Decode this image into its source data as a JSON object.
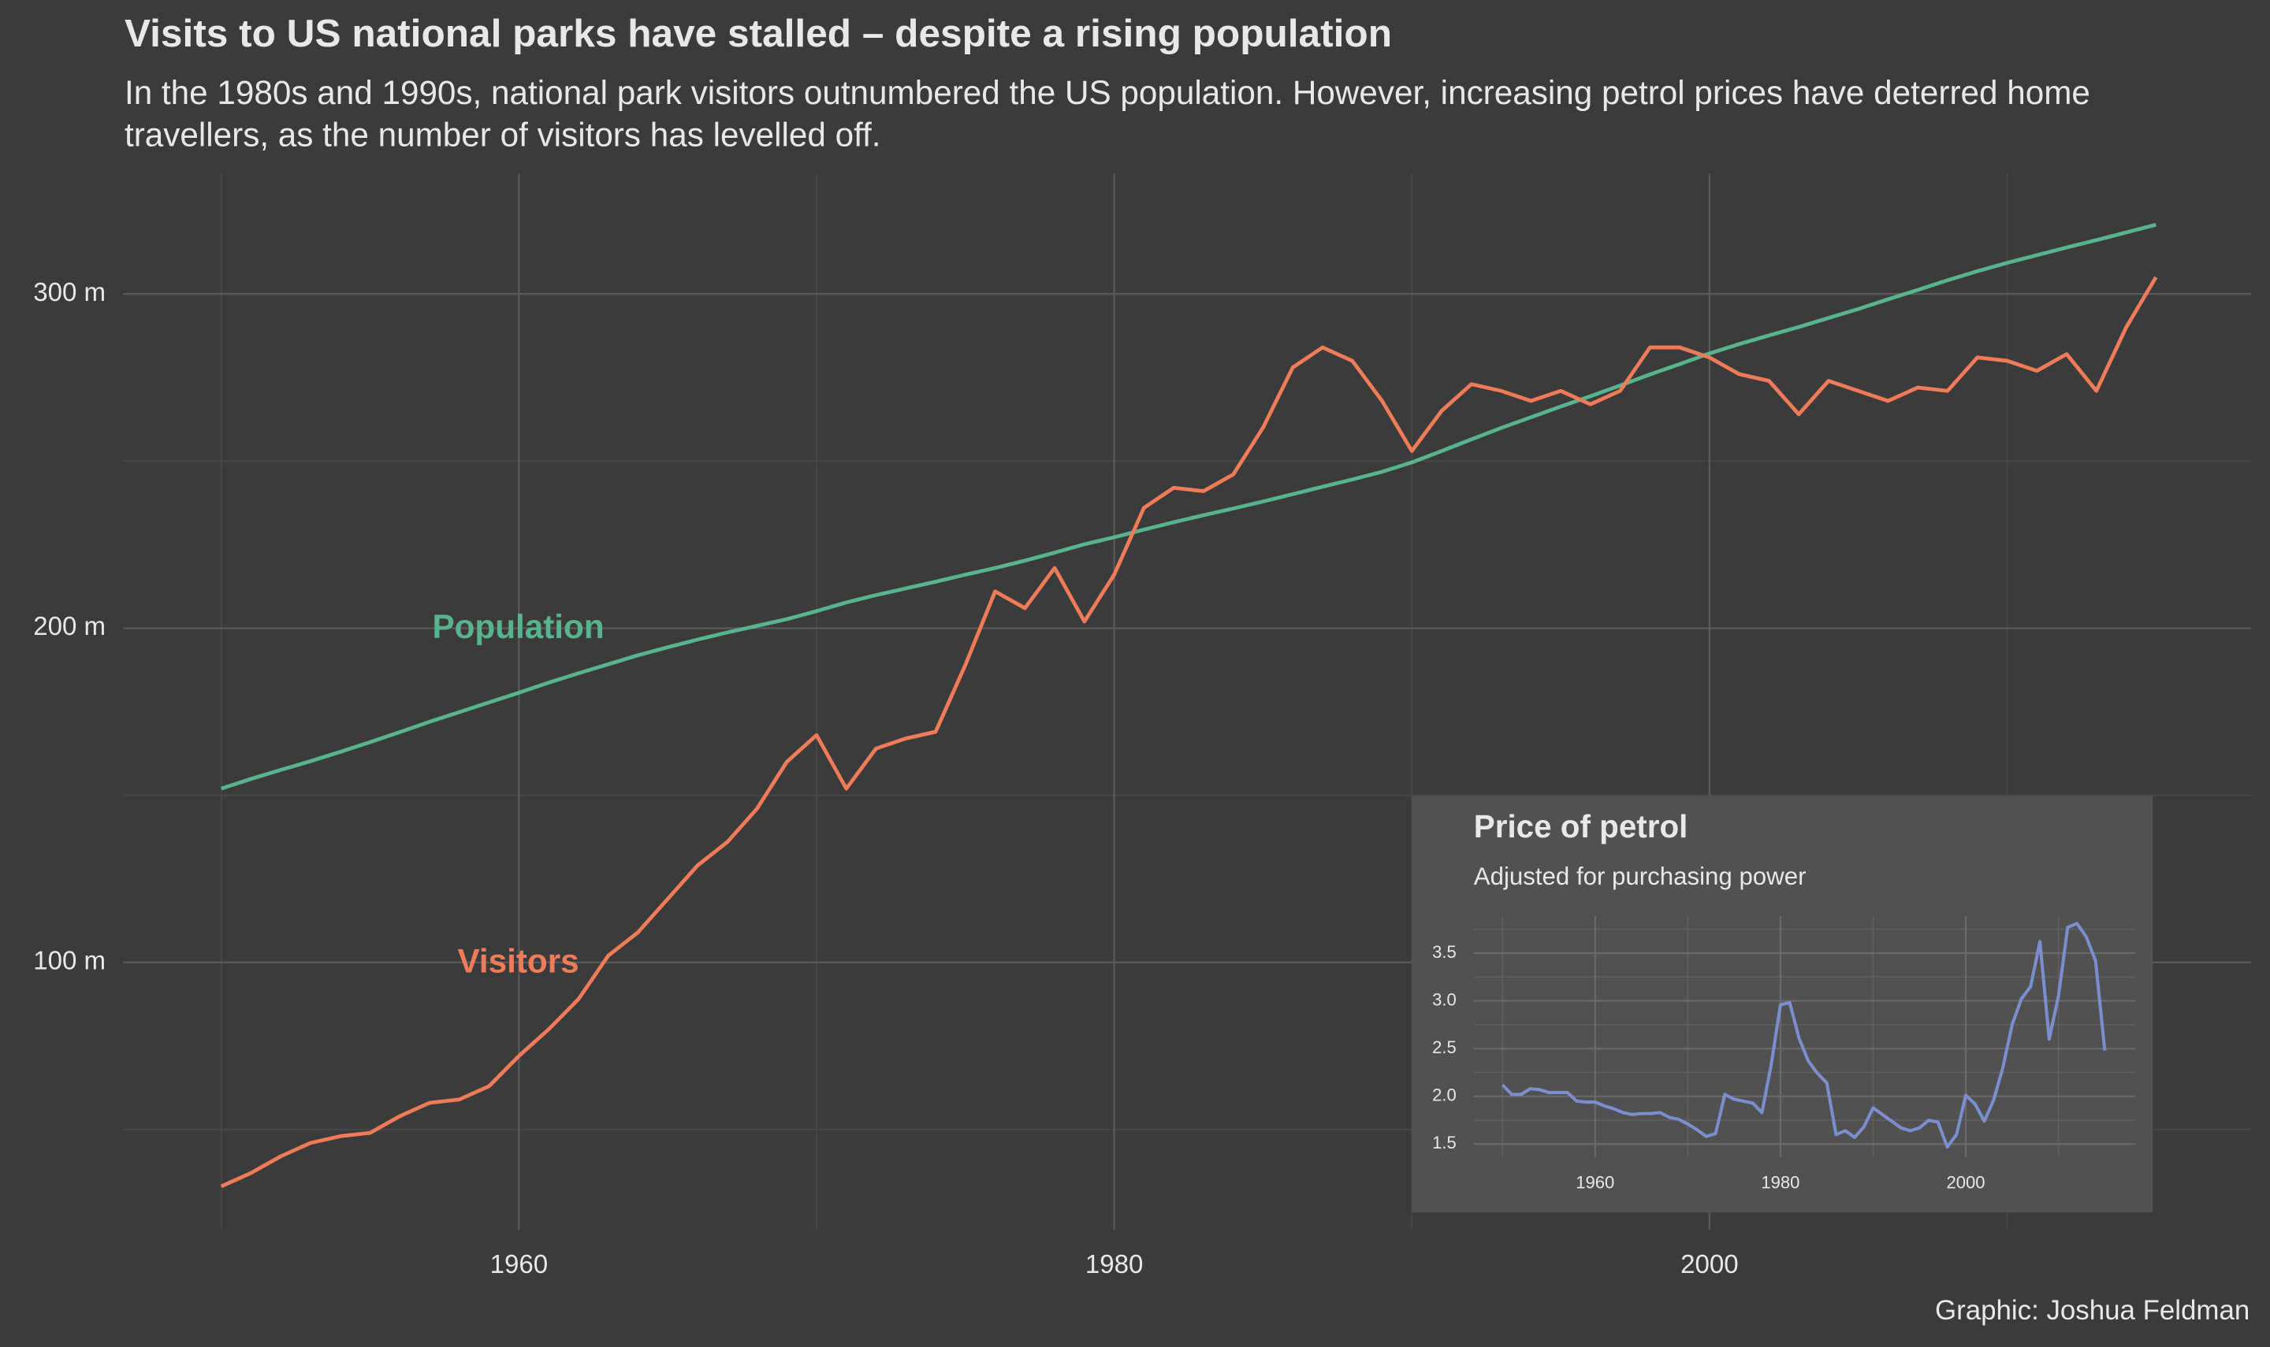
{
  "chart_data": [
    {
      "type": "line",
      "title": "Visits to US national parks have stalled – despite a rising population",
      "subtitle": "In the 1980s and 1990s, national park visitors outnumbered the US population. However, increasing petrol prices have deterred home travellers, as the number of visitors has levelled off.",
      "x": [
        1950,
        1951,
        1952,
        1953,
        1954,
        1955,
        1956,
        1957,
        1958,
        1959,
        1960,
        1961,
        1962,
        1963,
        1964,
        1965,
        1966,
        1967,
        1968,
        1969,
        1970,
        1971,
        1972,
        1973,
        1974,
        1975,
        1976,
        1977,
        1978,
        1979,
        1980,
        1981,
        1982,
        1983,
        1984,
        1985,
        1986,
        1987,
        1988,
        1989,
        1990,
        1991,
        1992,
        1993,
        1994,
        1995,
        1996,
        1997,
        1998,
        1999,
        2000,
        2001,
        2002,
        2003,
        2004,
        2005,
        2006,
        2007,
        2008,
        2009,
        2010,
        2011,
        2012,
        2013,
        2014,
        2015
      ],
      "series": [
        {
          "name": "Population",
          "color": "#58b48f",
          "values": [
            152,
            154.9,
            157.6,
            160.2,
            163,
            165.9,
            168.9,
            172,
            174.9,
            177.8,
            180.7,
            183.7,
            186.5,
            189.2,
            191.9,
            194.3,
            196.6,
            198.7,
            200.7,
            202.7,
            205.1,
            207.7,
            209.9,
            211.9,
            213.9,
            216,
            218,
            220.2,
            222.6,
            225.1,
            227.2,
            229.5,
            231.7,
            233.8,
            235.8,
            237.9,
            240.1,
            242.3,
            244.5,
            246.8,
            249.6,
            253,
            256.5,
            259.9,
            263.1,
            266.3,
            269.4,
            272.6,
            275.9,
            279,
            282.2,
            285,
            287.6,
            290.1,
            292.8,
            295.5,
            298.4,
            301.2,
            304.1,
            306.8,
            309.3,
            311.6,
            313.9,
            316.1,
            318.4,
            320.7
          ]
        },
        {
          "name": "Visitors",
          "color": "#f07b58",
          "values": [
            33,
            37,
            42,
            46,
            48,
            49,
            54,
            58,
            59,
            63,
            72,
            80,
            89,
            102,
            109,
            119,
            129,
            136,
            146,
            160,
            168,
            152,
            164,
            167,
            169,
            189,
            211,
            206,
            218,
            202,
            216,
            236,
            242,
            241,
            246,
            260,
            278,
            284,
            280,
            268,
            253,
            265,
            273,
            271,
            268,
            271,
            267,
            271,
            284,
            284,
            281,
            276,
            274,
            264,
            274,
            271,
            268,
            272,
            271,
            281,
            280,
            277,
            282,
            271,
            290,
            305
          ]
        }
      ],
      "xlim": [
        1946.7,
        2018.2
      ],
      "xticks": [
        1960,
        1980,
        2000
      ],
      "xminor": [
        1950,
        1970,
        1990,
        2010
      ],
      "ylim": [
        20,
        336
      ],
      "yticks": [
        {
          "value": 100,
          "label": "100 m"
        },
        {
          "value": 200,
          "label": "200 m"
        },
        {
          "value": 300,
          "label": "300 m"
        }
      ],
      "yminor": [
        50,
        150,
        250
      ],
      "grid": true
    },
    {
      "type": "line",
      "title": "Price of petrol",
      "subtitle": "Adjusted for purchasing power",
      "x": [
        1950,
        1951,
        1952,
        1953,
        1954,
        1955,
        1956,
        1957,
        1958,
        1959,
        1960,
        1961,
        1962,
        1963,
        1964,
        1965,
        1966,
        1967,
        1968,
        1969,
        1970,
        1971,
        1972,
        1973,
        1974,
        1975,
        1976,
        1977,
        1978,
        1979,
        1980,
        1981,
        1982,
        1983,
        1984,
        1985,
        1986,
        1987,
        1988,
        1989,
        1990,
        1991,
        1992,
        1993,
        1994,
        1995,
        1996,
        1997,
        1998,
        1999,
        2000,
        2001,
        2002,
        2003,
        2004,
        2005,
        2006,
        2007,
        2008,
        2009,
        2010,
        2011,
        2012,
        2013,
        2014,
        2015
      ],
      "series": [
        {
          "name": "Price of petrol",
          "color": "#7b8fd0",
          "values": [
            2.12,
            2.02,
            2.02,
            2.08,
            2.07,
            2.04,
            2.04,
            2.04,
            1.95,
            1.94,
            1.94,
            1.9,
            1.87,
            1.83,
            1.81,
            1.82,
            1.82,
            1.83,
            1.78,
            1.76,
            1.71,
            1.65,
            1.58,
            1.61,
            2.02,
            1.97,
            1.95,
            1.93,
            1.83,
            2.33,
            2.96,
            2.98,
            2.61,
            2.37,
            2.24,
            2.14,
            1.6,
            1.64,
            1.57,
            1.68,
            1.88,
            1.81,
            1.74,
            1.67,
            1.64,
            1.67,
            1.75,
            1.73,
            1.47,
            1.6,
            2.01,
            1.92,
            1.74,
            1.96,
            2.3,
            2.75,
            3.02,
            3.15,
            3.62,
            2.6,
            3.05,
            3.77,
            3.81,
            3.67,
            3.42,
            2.48
          ]
        }
      ],
      "xlim": [
        1946.9,
        2018.3
      ],
      "xticks": [
        1960,
        1980,
        2000
      ],
      "xminor": [
        1950,
        1970,
        1990,
        2010
      ],
      "ylim": [
        1.36,
        3.89
      ],
      "yticks": [
        1.5,
        {
          "value": 2,
          "label": "2.0"
        },
        2.5,
        {
          "value": 3,
          "label": "3.0"
        },
        3.5
      ],
      "yminor": [
        1.75,
        2.25,
        2.75,
        3.25,
        3.75
      ],
      "grid": true
    }
  ],
  "caption": "Graphic: Joshua Feldman"
}
